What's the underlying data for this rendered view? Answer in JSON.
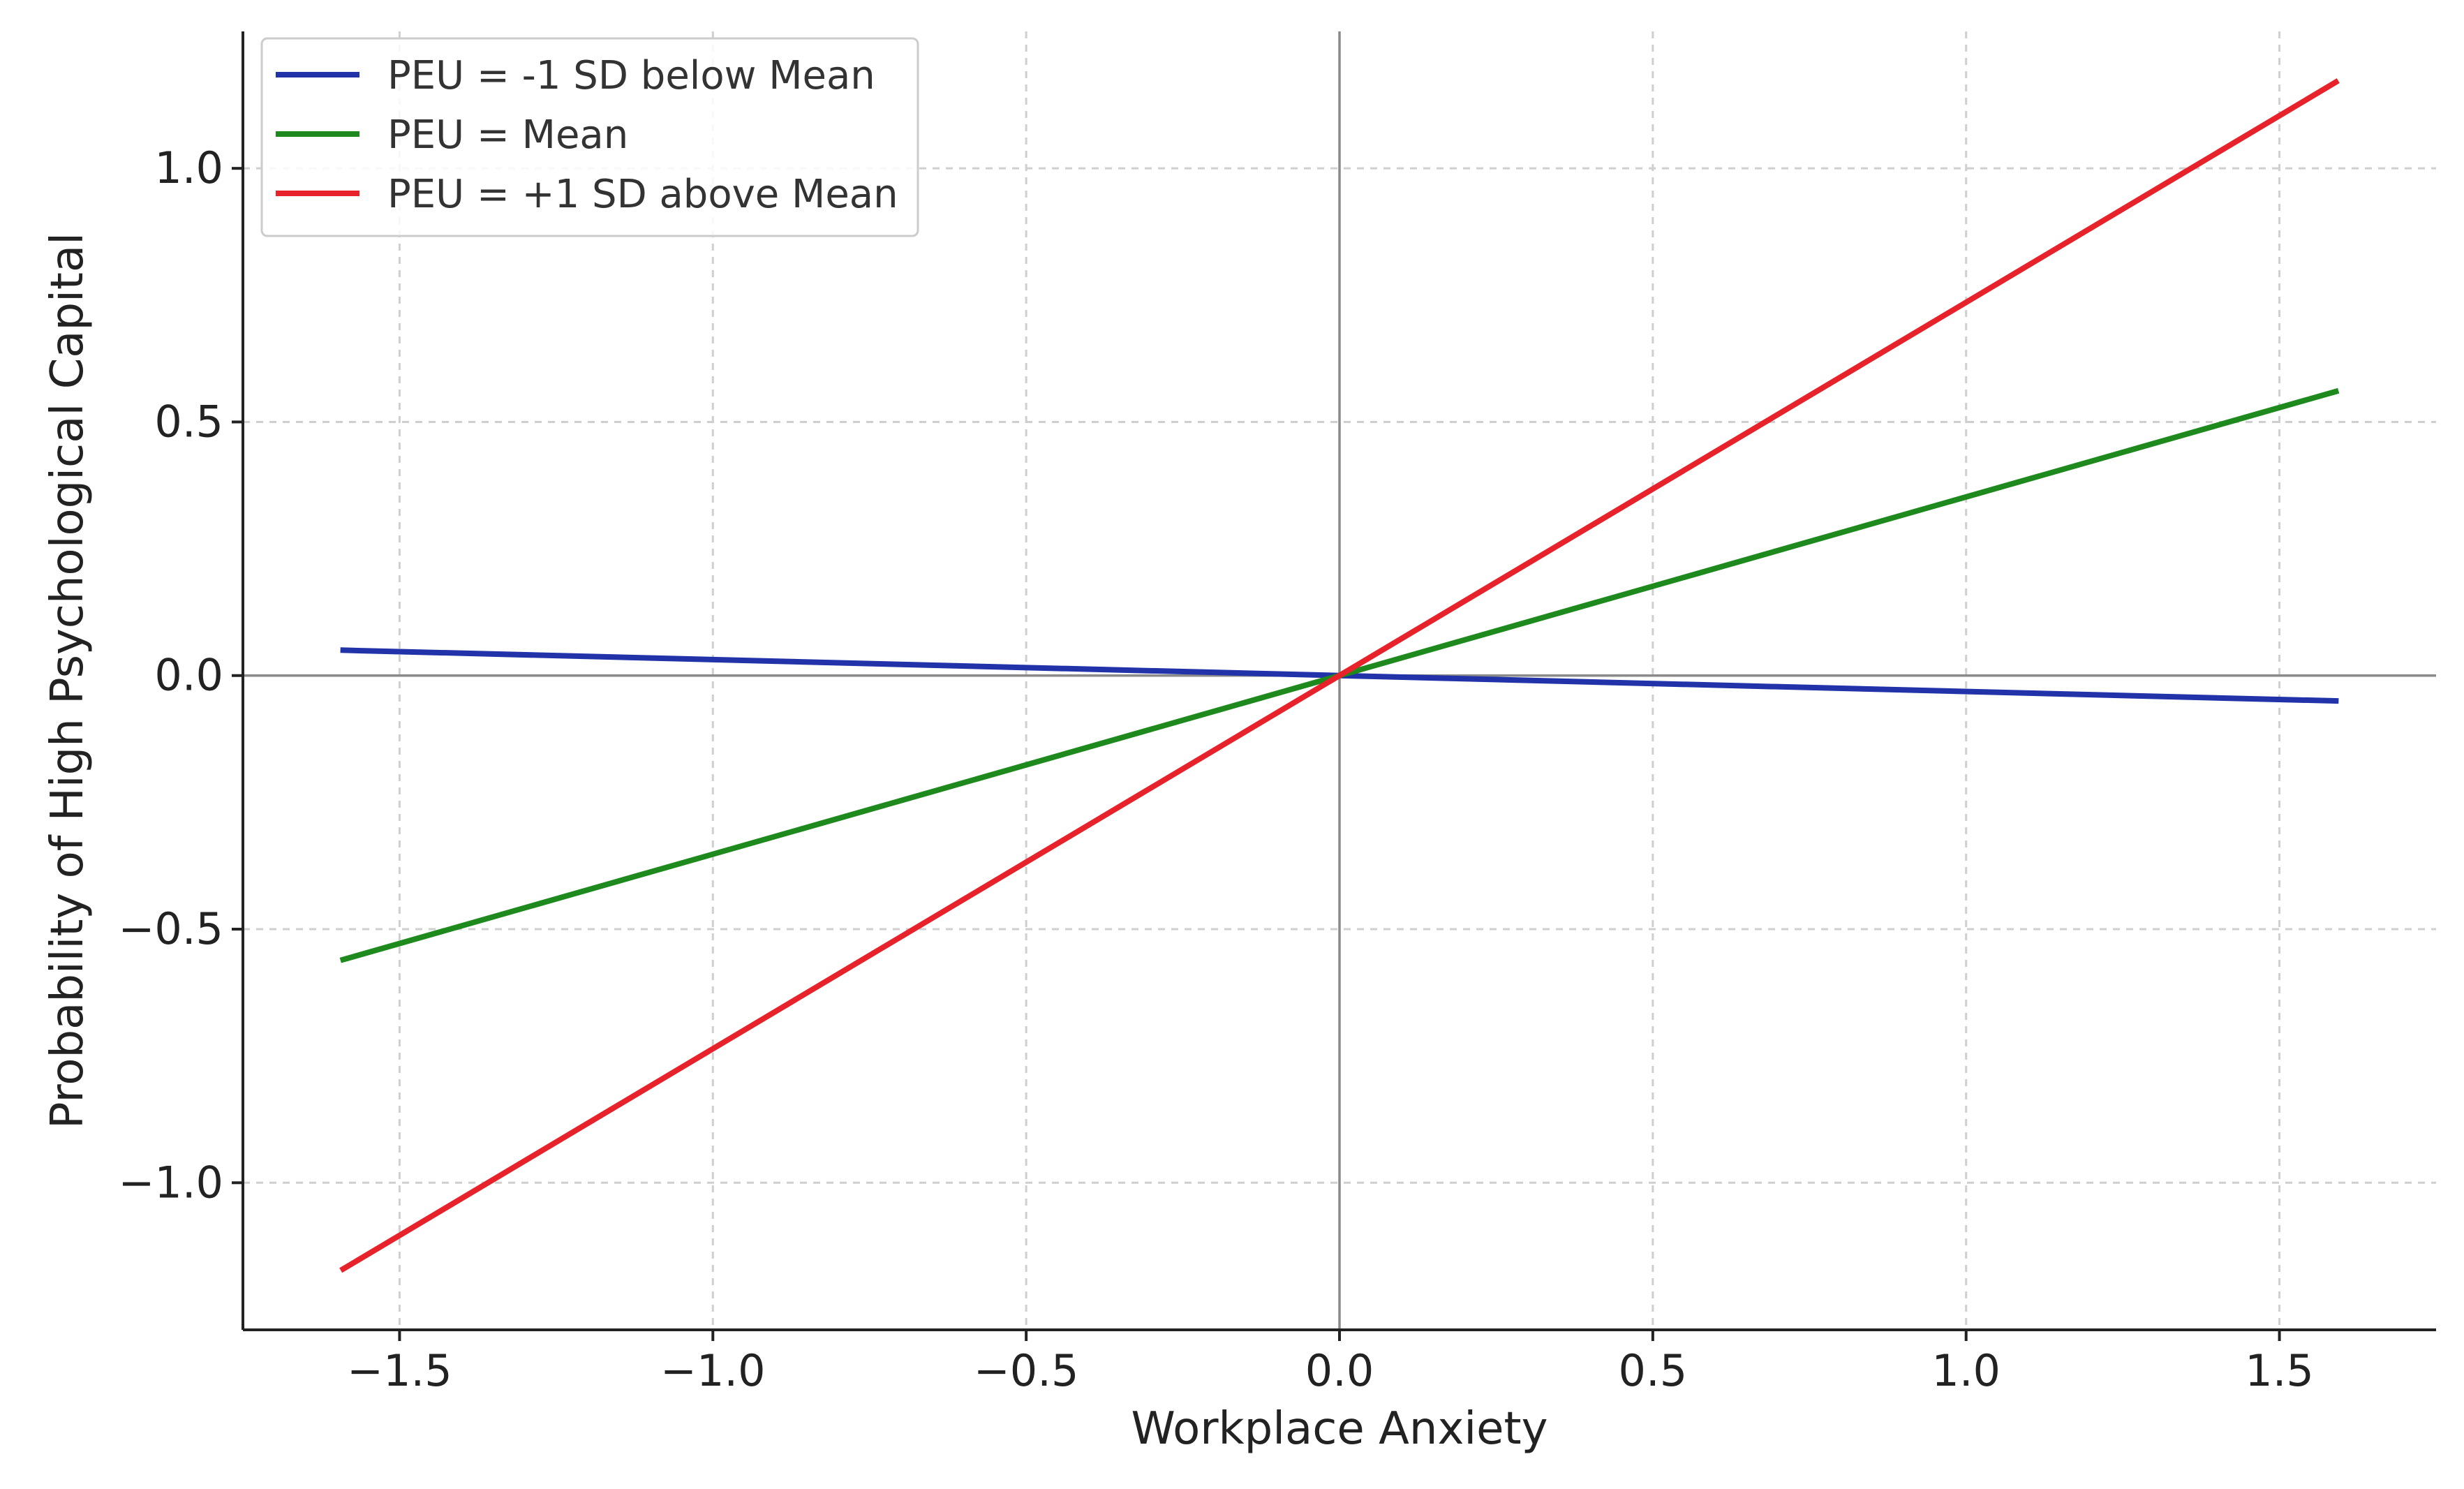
{
  "chart_data": {
    "type": "line",
    "xlabel": "Workplace Anxiety",
    "ylabel": "Probability of High Psychological Capital",
    "xlim": [
      -1.75,
      1.75
    ],
    "ylim": [
      -1.29,
      1.27
    ],
    "xticks": [
      -1.5,
      -1.0,
      -0.5,
      0.0,
      0.5,
      1.0,
      1.5
    ],
    "xtick_labels": [
      "−1.5",
      "−1.0",
      "−0.5",
      "0.0",
      "0.5",
      "1.0",
      "1.5"
    ],
    "yticks": [
      -1.0,
      -0.5,
      0.0,
      0.5,
      1.0
    ],
    "ytick_labels": [
      "−1.0",
      "−0.5",
      "0.0",
      "0.5",
      "1.0"
    ],
    "grid": true,
    "reference_lines": {
      "x": 0,
      "y": 0
    },
    "legend_position": "top-left",
    "series": [
      {
        "name": "PEU = -1 SD below Mean",
        "color": "#2233aa",
        "x": [
          -1.59,
          1.59
        ],
        "y": [
          0.05,
          -0.05
        ]
      },
      {
        "name": "PEU = Mean",
        "color": "#1e8a1e",
        "x": [
          -1.59,
          1.59
        ],
        "y": [
          -0.56,
          0.56
        ]
      },
      {
        "name": "PEU = +1 SD above Mean",
        "color": "#e8222a",
        "x": [
          -1.59,
          1.59
        ],
        "y": [
          -1.17,
          1.17
        ]
      }
    ]
  }
}
